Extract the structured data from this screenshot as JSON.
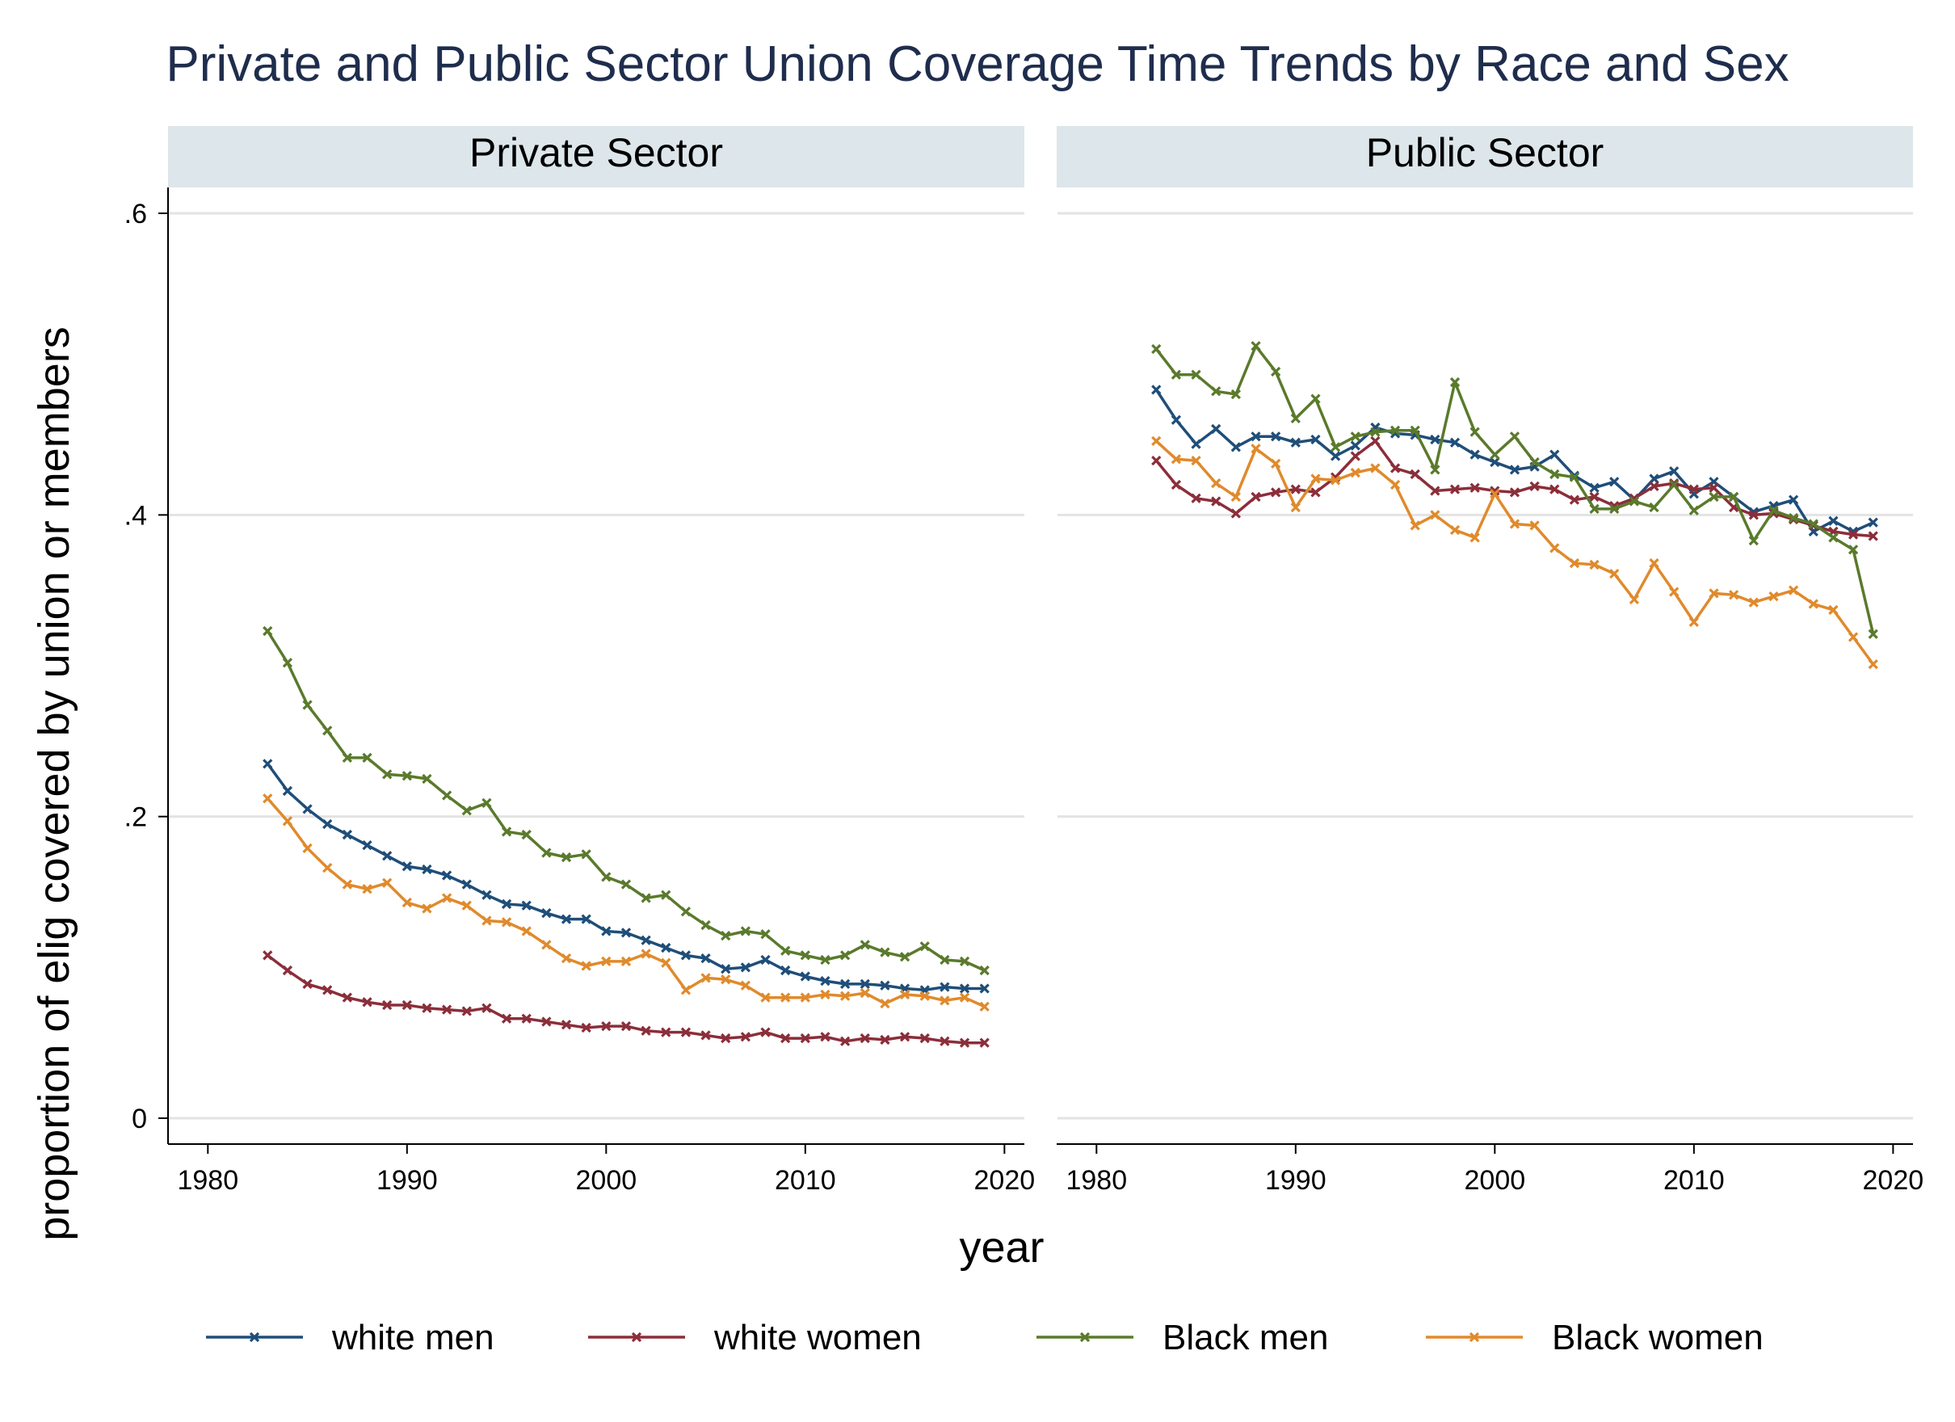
{
  "chart_data": {
    "type": "line",
    "title": "Private and Public Sector Union Coverage Time Trends by Race and Sex",
    "xlabel": "year",
    "ylabel": "proportion of elig covered by union or members",
    "xlim": [
      1978,
      2021
    ],
    "ylim": [
      0,
      0.6
    ],
    "xticks": [
      1980,
      1990,
      2000,
      2010,
      2020
    ],
    "yticks": [
      0,
      0.2,
      0.4,
      0.6
    ],
    "ytick_labels": [
      "0",
      ".2",
      ".4",
      ".6"
    ],
    "grid": true,
    "legend_position": "bottom",
    "colors": {
      "white men": "#1f4e79",
      "white women": "#8b2e3a",
      "Black men": "#5a7a2c",
      "Black women": "#e08a2c"
    },
    "panels": [
      {
        "name": "Private Sector",
        "series": [
          {
            "name": "white men",
            "x": [
              1983,
              1984,
              1985,
              1986,
              1987,
              1988,
              1989,
              1990,
              1991,
              1992,
              1993,
              1994,
              1995,
              1996,
              1997,
              1998,
              1999,
              2000,
              2001,
              2002,
              2003,
              2004,
              2005,
              2006,
              2007,
              2008,
              2009,
              2010,
              2011,
              2012,
              2013,
              2014,
              2015,
              2016,
              2017,
              2018,
              2019
            ],
            "values": [
              0.235,
              0.217,
              0.205,
              0.195,
              0.188,
              0.181,
              0.174,
              0.167,
              0.165,
              0.161,
              0.155,
              0.148,
              0.142,
              0.141,
              0.136,
              0.132,
              0.132,
              0.124,
              0.123,
              0.118,
              0.113,
              0.108,
              0.106,
              0.099,
              0.1,
              0.105,
              0.098,
              0.094,
              0.091,
              0.089,
              0.089,
              0.088,
              0.086,
              0.085,
              0.087,
              0.086,
              0.086
            ]
          },
          {
            "name": "white women",
            "x": [
              1983,
              1984,
              1985,
              1986,
              1987,
              1988,
              1989,
              1990,
              1991,
              1992,
              1993,
              1994,
              1995,
              1996,
              1997,
              1998,
              1999,
              2000,
              2001,
              2002,
              2003,
              2004,
              2005,
              2006,
              2007,
              2008,
              2009,
              2010,
              2011,
              2012,
              2013,
              2014,
              2015,
              2016,
              2017,
              2018,
              2019
            ],
            "values": [
              0.108,
              0.098,
              0.089,
              0.085,
              0.08,
              0.077,
              0.075,
              0.075,
              0.073,
              0.072,
              0.071,
              0.073,
              0.066,
              0.066,
              0.064,
              0.062,
              0.06,
              0.061,
              0.061,
              0.058,
              0.057,
              0.057,
              0.055,
              0.053,
              0.054,
              0.057,
              0.053,
              0.053,
              0.054,
              0.051,
              0.053,
              0.052,
              0.054,
              0.053,
              0.051,
              0.05,
              0.05
            ]
          },
          {
            "name": "Black men",
            "x": [
              1983,
              1984,
              1985,
              1986,
              1987,
              1988,
              1989,
              1990,
              1991,
              1992,
              1993,
              1994,
              1995,
              1996,
              1997,
              1998,
              1999,
              2000,
              2001,
              2002,
              2003,
              2004,
              2005,
              2006,
              2007,
              2008,
              2009,
              2010,
              2011,
              2012,
              2013,
              2014,
              2015,
              2016,
              2017,
              2018,
              2019
            ],
            "values": [
              0.323,
              0.302,
              0.274,
              0.257,
              0.239,
              0.239,
              0.228,
              0.227,
              0.225,
              0.214,
              0.204,
              0.209,
              0.19,
              0.188,
              0.176,
              0.173,
              0.175,
              0.16,
              0.155,
              0.146,
              0.148,
              0.137,
              0.128,
              0.121,
              0.124,
              0.122,
              0.111,
              0.108,
              0.105,
              0.108,
              0.115,
              0.11,
              0.107,
              0.114,
              0.105,
              0.104,
              0.098
            ]
          },
          {
            "name": "Black women",
            "x": [
              1983,
              1984,
              1985,
              1986,
              1987,
              1988,
              1989,
              1990,
              1991,
              1992,
              1993,
              1994,
              1995,
              1996,
              1997,
              1998,
              1999,
              2000,
              2001,
              2002,
              2003,
              2004,
              2005,
              2006,
              2007,
              2008,
              2009,
              2010,
              2011,
              2012,
              2013,
              2014,
              2015,
              2016,
              2017,
              2018,
              2019
            ],
            "values": [
              0.212,
              0.197,
              0.179,
              0.166,
              0.155,
              0.152,
              0.156,
              0.143,
              0.139,
              0.146,
              0.141,
              0.131,
              0.13,
              0.124,
              0.115,
              0.106,
              0.101,
              0.104,
              0.104,
              0.109,
              0.103,
              0.085,
              0.093,
              0.092,
              0.088,
              0.08,
              0.08,
              0.08,
              0.082,
              0.081,
              0.083,
              0.076,
              0.082,
              0.081,
              0.078,
              0.08,
              0.074
            ]
          }
        ]
      },
      {
        "name": "Public Sector",
        "series": [
          {
            "name": "white men",
            "x": [
              1983,
              1984,
              1985,
              1986,
              1987,
              1988,
              1989,
              1990,
              1991,
              1992,
              1993,
              1994,
              1995,
              1996,
              1997,
              1998,
              1999,
              2000,
              2001,
              2002,
              2003,
              2004,
              2005,
              2006,
              2007,
              2008,
              2009,
              2010,
              2011,
              2012,
              2013,
              2014,
              2015,
              2016,
              2017,
              2018,
              2019
            ],
            "values": [
              0.483,
              0.463,
              0.447,
              0.457,
              0.445,
              0.452,
              0.452,
              0.448,
              0.45,
              0.439,
              0.446,
              0.458,
              0.454,
              0.453,
              0.45,
              0.448,
              0.44,
              0.435,
              0.43,
              0.432,
              0.44,
              0.426,
              0.418,
              0.422,
              0.41,
              0.424,
              0.429,
              0.414,
              0.422,
              0.412,
              0.402,
              0.406,
              0.41,
              0.389,
              0.396,
              0.389,
              0.395
            ]
          },
          {
            "name": "white women",
            "x": [
              1983,
              1984,
              1985,
              1986,
              1987,
              1988,
              1989,
              1990,
              1991,
              1992,
              1993,
              1994,
              1995,
              1996,
              1997,
              1998,
              1999,
              2000,
              2001,
              2002,
              2003,
              2004,
              2005,
              2006,
              2007,
              2008,
              2009,
              2010,
              2011,
              2012,
              2013,
              2014,
              2015,
              2016,
              2017,
              2018,
              2019
            ],
            "values": [
              0.436,
              0.42,
              0.411,
              0.409,
              0.401,
              0.412,
              0.415,
              0.417,
              0.415,
              0.425,
              0.439,
              0.449,
              0.431,
              0.427,
              0.416,
              0.417,
              0.418,
              0.416,
              0.415,
              0.419,
              0.417,
              0.41,
              0.412,
              0.406,
              0.411,
              0.419,
              0.421,
              0.417,
              0.418,
              0.405,
              0.4,
              0.401,
              0.397,
              0.393,
              0.389,
              0.387,
              0.386
            ]
          },
          {
            "name": "Black men",
            "x": [
              1983,
              1984,
              1985,
              1986,
              1987,
              1988,
              1989,
              1990,
              1991,
              1992,
              1993,
              1994,
              1995,
              1996,
              1997,
              1998,
              1999,
              2000,
              2001,
              2002,
              2003,
              2004,
              2005,
              2006,
              2007,
              2008,
              2009,
              2010,
              2011,
              2012,
              2013,
              2014,
              2015,
              2016,
              2017,
              2018,
              2019
            ],
            "values": [
              0.51,
              0.493,
              0.493,
              0.482,
              0.48,
              0.512,
              0.495,
              0.464,
              0.477,
              0.445,
              0.452,
              0.455,
              0.456,
              0.456,
              0.43,
              0.488,
              0.455,
              0.44,
              0.452,
              0.435,
              0.427,
              0.425,
              0.404,
              0.404,
              0.409,
              0.405,
              0.42,
              0.403,
              0.412,
              0.412,
              0.383,
              0.403,
              0.398,
              0.394,
              0.385,
              0.377,
              0.321
            ]
          },
          {
            "name": "Black women",
            "x": [
              1983,
              1984,
              1985,
              1986,
              1987,
              1988,
              1989,
              1990,
              1991,
              1992,
              1993,
              1994,
              1995,
              1996,
              1997,
              1998,
              1999,
              2000,
              2001,
              2002,
              2003,
              2004,
              2005,
              2006,
              2007,
              2008,
              2009,
              2010,
              2011,
              2012,
              2013,
              2014,
              2015,
              2016,
              2017,
              2018,
              2019
            ],
            "values": [
              0.449,
              0.437,
              0.436,
              0.421,
              0.412,
              0.444,
              0.434,
              0.405,
              0.424,
              0.423,
              0.428,
              0.431,
              0.42,
              0.393,
              0.4,
              0.39,
              0.385,
              0.414,
              0.394,
              0.393,
              0.378,
              0.368,
              0.367,
              0.361,
              0.344,
              0.368,
              0.349,
              0.329,
              0.348,
              0.347,
              0.342,
              0.346,
              0.35,
              0.341,
              0.337,
              0.319,
              0.301
            ]
          }
        ]
      }
    ],
    "legend": [
      "white men",
      "white women",
      "Black men",
      "Black women"
    ]
  }
}
